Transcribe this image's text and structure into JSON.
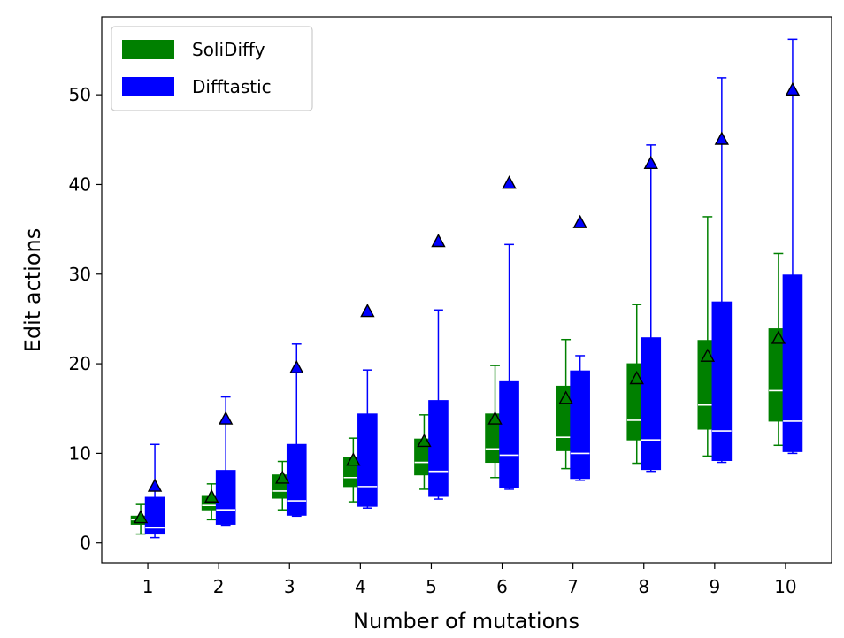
{
  "chart_data": {
    "type": "box",
    "title": "",
    "xlabel": "Number of mutations",
    "ylabel": "Edit actions",
    "categories": [
      "1",
      "2",
      "3",
      "4",
      "5",
      "6",
      "7",
      "8",
      "9",
      "10"
    ],
    "ylim": [
      -2.2,
      58.7
    ],
    "yticks": [
      0,
      10,
      20,
      30,
      40,
      50
    ],
    "legend_position": "top-left",
    "series": [
      {
        "name": "SoliDiffy",
        "color": "#008000",
        "whisker_low": [
          1.0,
          2.6,
          3.7,
          4.6,
          6.0,
          7.3,
          8.3,
          8.9,
          9.7,
          10.9
        ],
        "q1": [
          2.1,
          3.7,
          5.0,
          6.3,
          7.6,
          9.0,
          10.3,
          11.5,
          12.7,
          13.6
        ],
        "median": [
          2.6,
          4.2,
          5.8,
          7.3,
          9.0,
          10.5,
          11.8,
          13.7,
          15.4,
          17.0
        ],
        "q3": [
          3.0,
          5.3,
          7.6,
          9.5,
          11.6,
          14.4,
          17.5,
          20.0,
          22.6,
          23.9
        ],
        "whisker_high": [
          4.3,
          6.6,
          9.1,
          11.7,
          14.3,
          19.8,
          22.7,
          26.6,
          36.4,
          32.3
        ],
        "mean": [
          2.8,
          5.1,
          7.2,
          9.2,
          11.3,
          13.8,
          16.1,
          18.3,
          20.8,
          22.8
        ]
      },
      {
        "name": "Difftastic",
        "color": "#0000ff",
        "whisker_low": [
          0.6,
          2.0,
          3.0,
          3.9,
          4.9,
          6.0,
          7.0,
          8.0,
          9.0,
          10.0
        ],
        "q1": [
          1.0,
          2.1,
          3.1,
          4.1,
          5.2,
          6.2,
          7.2,
          8.2,
          9.2,
          10.2
        ],
        "median": [
          1.7,
          3.7,
          4.7,
          6.3,
          8.0,
          9.8,
          10.0,
          11.5,
          12.5,
          13.6
        ],
        "q3": [
          5.1,
          8.1,
          11.0,
          14.4,
          15.9,
          18.0,
          19.2,
          22.9,
          26.9,
          29.9
        ],
        "whisker_high": [
          11.0,
          16.3,
          22.2,
          19.3,
          26.0,
          33.3,
          20.9,
          44.4,
          51.9,
          56.2
        ],
        "mean": [
          6.3,
          13.8,
          19.5,
          25.8,
          33.6,
          40.1,
          35.7,
          42.3,
          45.0,
          50.5
        ]
      }
    ]
  }
}
